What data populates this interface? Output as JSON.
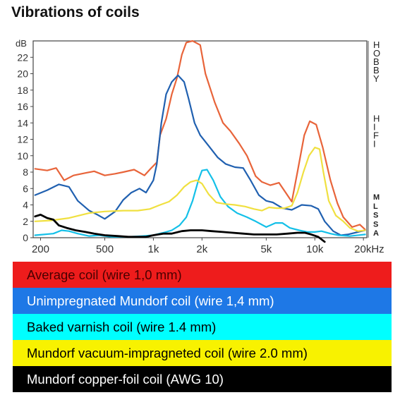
{
  "chart_data": {
    "type": "line",
    "title": "Vibrations of coils",
    "y_unit": "dB",
    "x_unit": "Hz",
    "xscale": "log",
    "xlim": [
      180,
      21000
    ],
    "ylim": [
      0,
      24
    ],
    "x_ticks": [
      {
        "value": 200,
        "label": "200"
      },
      {
        "value": 500,
        "label": "500"
      },
      {
        "value": 1000,
        "label": "1k"
      },
      {
        "value": 2000,
        "label": "2k"
      },
      {
        "value": 5000,
        "label": "5k"
      },
      {
        "value": 10000,
        "label": "10k"
      },
      {
        "value": 20000,
        "label": "20kHz"
      }
    ],
    "y_ticks": [
      {
        "value": 0,
        "label": "0"
      },
      {
        "value": 2,
        "label": "2"
      },
      {
        "value": 4,
        "label": "4"
      },
      {
        "value": 6,
        "label": "6"
      },
      {
        "value": 8,
        "label": "8"
      },
      {
        "value": 10,
        "label": "10"
      },
      {
        "value": 12,
        "label": "12"
      },
      {
        "value": 14,
        "label": "14"
      },
      {
        "value": 16,
        "label": "16"
      },
      {
        "value": 18,
        "label": "18"
      },
      {
        "value": 20,
        "label": "20"
      },
      {
        "value": 22,
        "label": "22"
      }
    ],
    "right_scale": [
      {
        "label": "HOBBY",
        "value": 24
      },
      {
        "label": "HIFI",
        "value": 15
      },
      {
        "label": "M",
        "value": 5.5
      },
      {
        "label": "L",
        "value": 4.4
      },
      {
        "label": "S",
        "value": 3.3
      },
      {
        "label": "S",
        "value": 2.2
      },
      {
        "label": "A",
        "value": 1.1
      }
    ],
    "series": [
      {
        "name": "Average coil (wire 1,0 mm)",
        "color": "#e8643a",
        "points": [
          [
            185,
            8.4
          ],
          [
            220,
            8.2
          ],
          [
            250,
            8.5
          ],
          [
            280,
            7.0
          ],
          [
            320,
            7.6
          ],
          [
            380,
            7.9
          ],
          [
            430,
            8.1
          ],
          [
            500,
            7.6
          ],
          [
            580,
            7.8
          ],
          [
            650,
            8.0
          ],
          [
            760,
            8.3
          ],
          [
            880,
            7.6
          ],
          [
            960,
            8.4
          ],
          [
            1050,
            9.2
          ],
          [
            1100,
            12.5
          ],
          [
            1200,
            14.5
          ],
          [
            1300,
            17.5
          ],
          [
            1400,
            19.5
          ],
          [
            1500,
            22.3
          ],
          [
            1600,
            23.8
          ],
          [
            1750,
            24.0
          ],
          [
            1950,
            23.5
          ],
          [
            2100,
            20.0
          ],
          [
            2400,
            16.5
          ],
          [
            2700,
            14.0
          ],
          [
            3000,
            13.0
          ],
          [
            3400,
            11.5
          ],
          [
            3800,
            10.0
          ],
          [
            4300,
            7.5
          ],
          [
            4700,
            6.8
          ],
          [
            5300,
            6.4
          ],
          [
            6000,
            6.7
          ],
          [
            6600,
            5.5
          ],
          [
            7200,
            4.4
          ],
          [
            7800,
            8.0
          ],
          [
            8600,
            12.5
          ],
          [
            9300,
            14.2
          ],
          [
            10200,
            13.8
          ],
          [
            11200,
            11.0
          ],
          [
            12500,
            7.0
          ],
          [
            13800,
            4.2
          ],
          [
            15000,
            2.5
          ],
          [
            17000,
            1.3
          ],
          [
            19000,
            1.6
          ],
          [
            20500,
            1.0
          ]
        ]
      },
      {
        "name": "Unimpregnated Mundorf coil (wire 1,4 mm)",
        "color": "#2060b0",
        "points": [
          [
            185,
            5.2
          ],
          [
            220,
            5.8
          ],
          [
            260,
            6.5
          ],
          [
            300,
            6.2
          ],
          [
            340,
            4.5
          ],
          [
            400,
            3.3
          ],
          [
            450,
            2.8
          ],
          [
            500,
            2.3
          ],
          [
            580,
            3.2
          ],
          [
            650,
            4.6
          ],
          [
            730,
            5.5
          ],
          [
            820,
            6.0
          ],
          [
            900,
            5.5
          ],
          [
            1000,
            7.0
          ],
          [
            1050,
            9.0
          ],
          [
            1120,
            14.0
          ],
          [
            1200,
            17.5
          ],
          [
            1300,
            19.0
          ],
          [
            1420,
            19.8
          ],
          [
            1550,
            19.0
          ],
          [
            1650,
            17.0
          ],
          [
            1800,
            14.0
          ],
          [
            1950,
            12.5
          ],
          [
            2200,
            11.2
          ],
          [
            2500,
            9.8
          ],
          [
            2800,
            9.0
          ],
          [
            3200,
            8.6
          ],
          [
            3600,
            8.5
          ],
          [
            4000,
            7.0
          ],
          [
            4500,
            5.2
          ],
          [
            5000,
            4.5
          ],
          [
            5500,
            4.3
          ],
          [
            6300,
            3.6
          ],
          [
            7200,
            3.4
          ],
          [
            8300,
            4.0
          ],
          [
            9500,
            3.9
          ],
          [
            10500,
            3.5
          ],
          [
            11500,
            2.0
          ],
          [
            13000,
            0.8
          ],
          [
            14500,
            0.3
          ],
          [
            16000,
            0.4
          ],
          [
            20500,
            0.9
          ]
        ]
      },
      {
        "name": "Baked varnish coil (wire 1.4 mm)",
        "color": "#14c0e8",
        "points": [
          [
            185,
            0.3
          ],
          [
            240,
            0.5
          ],
          [
            270,
            0.9
          ],
          [
            300,
            0.8
          ],
          [
            340,
            0.5
          ],
          [
            400,
            0.2
          ],
          [
            460,
            0.3
          ],
          [
            550,
            0.1
          ],
          [
            700,
            0.1
          ],
          [
            850,
            0.2
          ],
          [
            1000,
            0.3
          ],
          [
            1150,
            0.6
          ],
          [
            1300,
            0.9
          ],
          [
            1450,
            1.5
          ],
          [
            1600,
            2.5
          ],
          [
            1750,
            4.5
          ],
          [
            1900,
            7.0
          ],
          [
            2000,
            8.2
          ],
          [
            2150,
            8.3
          ],
          [
            2350,
            7.0
          ],
          [
            2600,
            5.0
          ],
          [
            2900,
            3.8
          ],
          [
            3300,
            3.0
          ],
          [
            3800,
            2.5
          ],
          [
            4300,
            2.0
          ],
          [
            5000,
            1.3
          ],
          [
            5700,
            1.8
          ],
          [
            6300,
            1.8
          ],
          [
            7000,
            1.2
          ],
          [
            8000,
            0.9
          ],
          [
            9000,
            0.7
          ],
          [
            10000,
            0.7
          ],
          [
            11000,
            0.8
          ],
          [
            12500,
            0.5
          ],
          [
            14000,
            0.3
          ],
          [
            16500,
            0.2
          ],
          [
            20500,
            0.4
          ]
        ]
      },
      {
        "name": "Mundorf vacuum-impragneted coil (wire 2.0 mm)",
        "color": "#f0e040",
        "points": [
          [
            185,
            2.0
          ],
          [
            230,
            2.1
          ],
          [
            300,
            2.4
          ],
          [
            400,
            3.0
          ],
          [
            500,
            3.2
          ],
          [
            650,
            3.3
          ],
          [
            800,
            3.3
          ],
          [
            950,
            3.5
          ],
          [
            1100,
            4.0
          ],
          [
            1250,
            4.4
          ],
          [
            1400,
            5.2
          ],
          [
            1550,
            6.2
          ],
          [
            1700,
            6.8
          ],
          [
            1850,
            7.0
          ],
          [
            2000,
            6.6
          ],
          [
            2200,
            5.3
          ],
          [
            2450,
            4.3
          ],
          [
            2800,
            4.1
          ],
          [
            3200,
            4.0
          ],
          [
            3700,
            3.8
          ],
          [
            4200,
            3.5
          ],
          [
            4700,
            3.3
          ],
          [
            5200,
            3.7
          ],
          [
            5800,
            3.6
          ],
          [
            6500,
            3.6
          ],
          [
            7200,
            3.9
          ],
          [
            7800,
            5.5
          ],
          [
            8500,
            8.0
          ],
          [
            9200,
            10.0
          ],
          [
            10000,
            11.0
          ],
          [
            10700,
            10.8
          ],
          [
            11300,
            8.0
          ],
          [
            12200,
            4.5
          ],
          [
            13500,
            2.7
          ],
          [
            15000,
            2.0
          ],
          [
            16500,
            1.2
          ],
          [
            18500,
            0.8
          ],
          [
            20500,
            0.9
          ]
        ]
      },
      {
        "name": "Mundorf copper-foil coil (AWG 10)",
        "color": "#000000",
        "points": [
          [
            185,
            2.6
          ],
          [
            200,
            2.8
          ],
          [
            220,
            2.4
          ],
          [
            240,
            2.2
          ],
          [
            260,
            1.5
          ],
          [
            290,
            1.2
          ],
          [
            330,
            0.9
          ],
          [
            380,
            0.7
          ],
          [
            430,
            0.5
          ],
          [
            500,
            0.3
          ],
          [
            600,
            0.2
          ],
          [
            700,
            0.1
          ],
          [
            800,
            0.1
          ],
          [
            900,
            0.1
          ],
          [
            1000,
            0.3
          ],
          [
            1150,
            0.5
          ],
          [
            1300,
            0.5
          ],
          [
            1500,
            0.8
          ],
          [
            1700,
            0.9
          ],
          [
            2000,
            0.9
          ],
          [
            2300,
            0.8
          ],
          [
            2700,
            0.7
          ],
          [
            3100,
            0.6
          ],
          [
            3600,
            0.5
          ],
          [
            4200,
            0.4
          ],
          [
            5000,
            0.4
          ],
          [
            5800,
            0.4
          ],
          [
            6800,
            0.5
          ],
          [
            7800,
            0.6
          ],
          [
            8700,
            0.6
          ],
          [
            9500,
            0.4
          ],
          [
            10500,
            0.1
          ],
          [
            11500,
            -0.5
          ]
        ]
      }
    ]
  },
  "legend": [
    {
      "label": "Average coil (wire 1,0 mm)",
      "bg": "#ee1c1c",
      "fg": "#4a0000"
    },
    {
      "label": "Unimpregnated Mundorf coil (wire 1,4 mm)",
      "bg": "#1e78e6",
      "fg": "#ffffff"
    },
    {
      "label": "Baked varnish coil (wire 1.4 mm)",
      "bg": "#00ffff",
      "fg": "#000000"
    },
    {
      "label": "Mundorf vacuum-impragneted coil (wire 2.0 mm)",
      "bg": "#f8f200",
      "fg": "#000000"
    },
    {
      "label": "Mundorf copper-foil coil (AWG 10)",
      "bg": "#000000",
      "fg": "#ffffff"
    }
  ]
}
